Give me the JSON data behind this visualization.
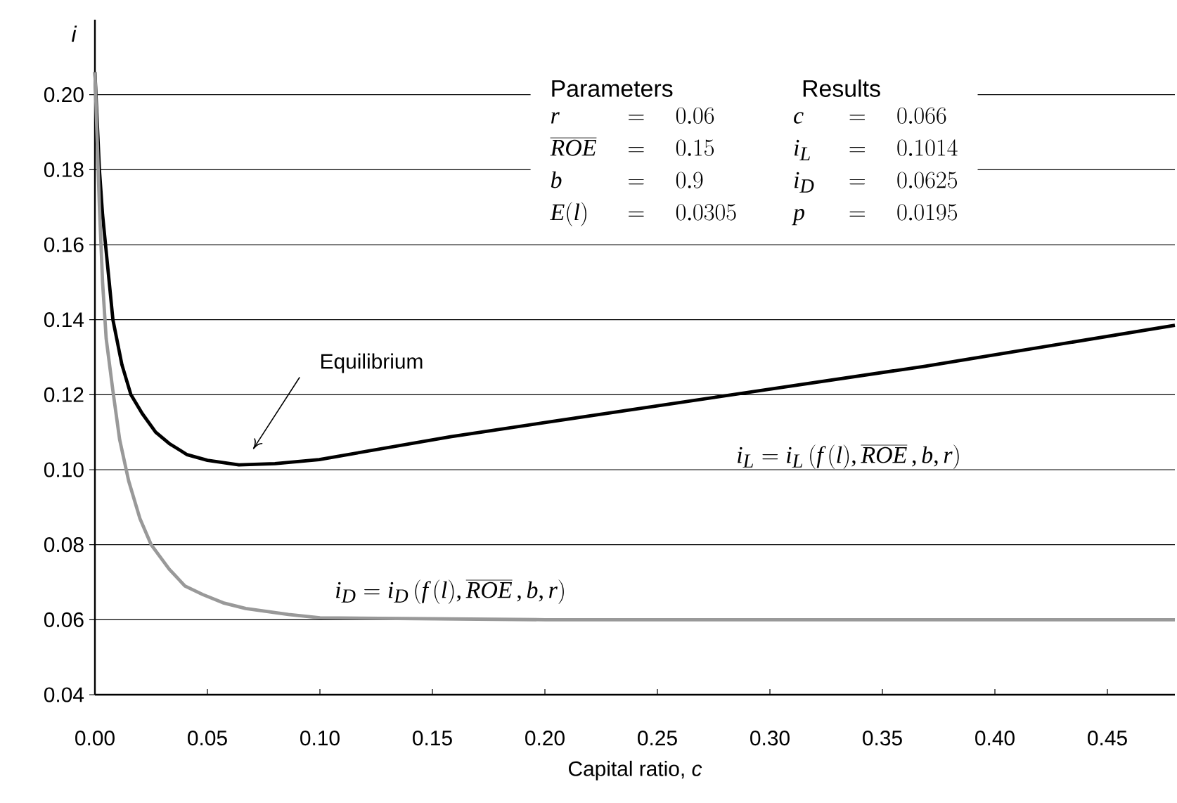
{
  "chart_data": {
    "type": "line",
    "xlabel": "Capital ratio, *c*",
    "ylabel": "i",
    "xlim": [
      0,
      0.48
    ],
    "ylim": [
      0.04,
      0.22
    ],
    "xticks": [
      {
        "value": 0,
        "label": "0.00"
      },
      0.05,
      {
        "value": 0.1,
        "label": "0.10"
      },
      0.15,
      {
        "value": 0.2,
        "label": "0.20"
      },
      0.25,
      {
        "value": 0.3,
        "label": "0.30"
      },
      0.35,
      {
        "value": 0.4,
        "label": "0.40"
      },
      0.45
    ],
    "yticks": [
      0.04,
      0.06,
      0.08,
      {
        "value": 0.1,
        "label": "0.10"
      },
      0.12,
      0.14,
      0.16,
      0.18,
      {
        "value": 0.2,
        "label": "0.20"
      }
    ],
    "grid": "y",
    "series": [
      {
        "color": "#000000",
        "x": [
          0.0,
          0.002,
          0.0034,
          0.008,
          0.012,
          0.016,
          0.021,
          0.027,
          0.033,
          0.041,
          0.05,
          0.064,
          0.08,
          0.0997,
          0.158,
          0.208,
          0.369,
          0.48
        ],
        "values": [
          0.206,
          0.18,
          0.168,
          0.14,
          0.128,
          0.12,
          0.115,
          0.11,
          0.107,
          0.104,
          0.1025,
          0.1013,
          0.1016,
          0.1027,
          0.1088,
          0.1133,
          0.1276,
          0.1385
        ]
      },
      {
        "color": "#999999",
        "x": [
          0.0,
          0.002,
          0.0034,
          0.005,
          0.008,
          0.011,
          0.015,
          0.02,
          0.025,
          0.033,
          0.04,
          0.048,
          0.057,
          0.067,
          0.086,
          0.1,
          0.2,
          0.48
        ],
        "values": [
          0.206,
          0.17,
          0.15,
          0.135,
          0.121,
          0.108,
          0.097,
          0.087,
          0.08,
          0.0735,
          0.069,
          0.0667,
          0.0645,
          0.063,
          0.0614,
          0.0605,
          0.06,
          0.06
        ]
      }
    ],
    "annotations": [
      "Equilibrium",
      "i_L = i_L\\,(f\\,(l), \\overline{ROE}\\,, b, r)",
      "i_D = i_D\\,(f\\,(l), \\overline{ROE}\\,, b, r)",
      "Parameters",
      "Results",
      "r",
      "= \\quad 0.06",
      "\\overline{ROE}",
      "= \\quad 0.15",
      "b",
      "= \\quad 0.9",
      "E(l)",
      "= \\quad 0.0305",
      "c",
      "= \\quad 0.066",
      "i_L",
      "= \\quad 0.1014",
      "i_D",
      "= \\quad 0.0625",
      "p",
      "= \\quad 0.0195"
    ]
  }
}
